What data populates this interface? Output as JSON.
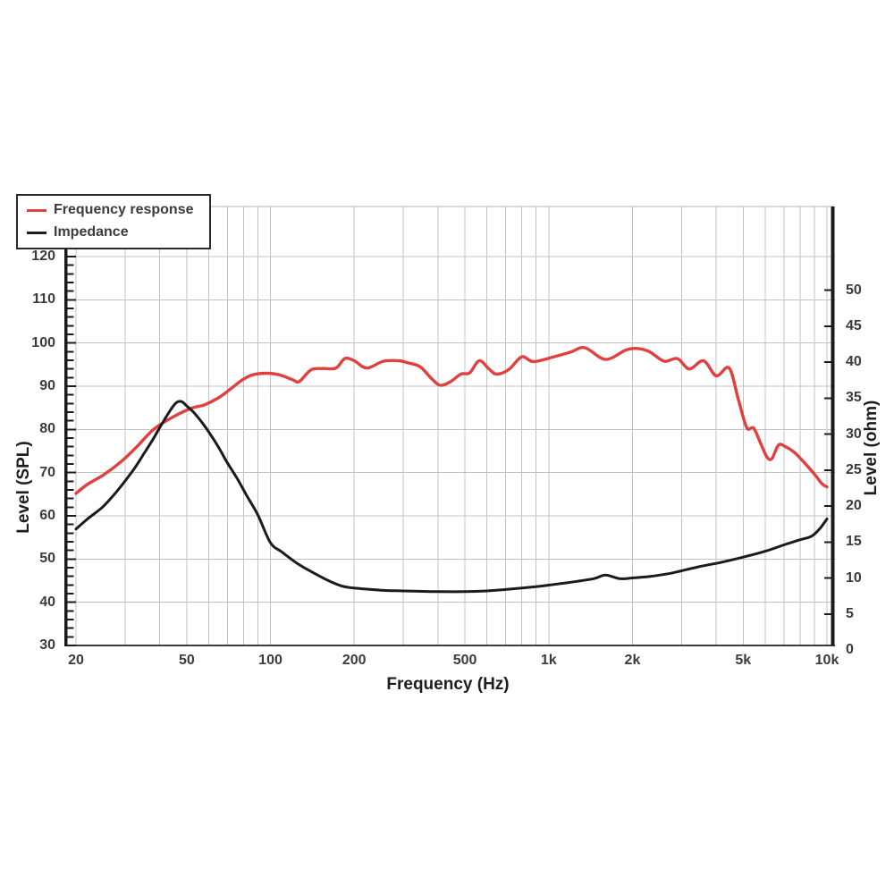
{
  "chart_data": {
    "type": "line",
    "title": "",
    "grid": true,
    "legend_position": "top-left",
    "x_axis": {
      "label": "Frequency (Hz)",
      "scale": "log",
      "min": 20,
      "max": 10000,
      "tick_labels": [
        "20",
        "50",
        "100",
        "200",
        "500",
        "1k",
        "2k",
        "5k",
        "10k"
      ],
      "tick_values": [
        20,
        50,
        100,
        200,
        500,
        1000,
        2000,
        5000,
        10000
      ]
    },
    "y_axis_left": {
      "label": "Level (SPL)",
      "min": 30,
      "max": 120,
      "tick_step": 10,
      "tick_labels": [
        "120",
        "110",
        "100",
        "90",
        "80",
        "70",
        "60",
        "50",
        "40",
        "30"
      ],
      "tick_values": [
        120,
        110,
        100,
        90,
        80,
        70,
        60,
        50,
        40,
        30
      ]
    },
    "y_axis_right": {
      "label": "Level (ohm)",
      "min": 0,
      "max": 50,
      "tick_step": 5,
      "tick_labels": [
        "50",
        "45",
        "40",
        "35",
        "30",
        "25",
        "20",
        "15",
        "10",
        "5",
        "0"
      ],
      "tick_values": [
        50,
        45,
        40,
        35,
        30,
        25,
        20,
        15,
        10,
        5,
        0
      ]
    },
    "series": [
      {
        "name": "Frequency response",
        "axis": "left",
        "unit": "dB SPL",
        "color": "#e0413e",
        "points": [
          [
            20,
            65.2
          ],
          [
            22,
            67.3
          ],
          [
            25,
            69.4
          ],
          [
            29,
            72.5
          ],
          [
            33,
            75.9
          ],
          [
            38,
            80.0
          ],
          [
            45,
            83.0
          ],
          [
            52,
            84.9
          ],
          [
            58,
            85.7
          ],
          [
            65,
            87.3
          ],
          [
            72,
            89.4
          ],
          [
            79,
            91.4
          ],
          [
            86,
            92.6
          ],
          [
            97,
            93.0
          ],
          [
            108,
            92.6
          ],
          [
            120,
            91.5
          ],
          [
            127,
            91.1
          ],
          [
            140,
            93.8
          ],
          [
            155,
            94.1
          ],
          [
            172,
            94.2
          ],
          [
            185,
            96.4
          ],
          [
            200,
            95.9
          ],
          [
            222,
            94.2
          ],
          [
            255,
            95.8
          ],
          [
            290,
            95.9
          ],
          [
            312,
            95.4
          ],
          [
            345,
            94.5
          ],
          [
            380,
            91.7
          ],
          [
            408,
            90.2
          ],
          [
            445,
            91.1
          ],
          [
            483,
            92.8
          ],
          [
            520,
            93.1
          ],
          [
            563,
            95.9
          ],
          [
            610,
            94.0
          ],
          [
            650,
            92.8
          ],
          [
            720,
            93.9
          ],
          [
            800,
            96.8
          ],
          [
            880,
            95.7
          ],
          [
            1030,
            96.7
          ],
          [
            1200,
            97.9
          ],
          [
            1350,
            98.9
          ],
          [
            1600,
            96.2
          ],
          [
            1900,
            98.4
          ],
          [
            2100,
            98.7
          ],
          [
            2300,
            98.0
          ],
          [
            2600,
            95.8
          ],
          [
            2900,
            96.4
          ],
          [
            3200,
            94.0
          ],
          [
            3600,
            95.9
          ],
          [
            4000,
            92.4
          ],
          [
            4450,
            94.2
          ],
          [
            4800,
            87.0
          ],
          [
            5150,
            80.4
          ],
          [
            5450,
            80.3
          ],
          [
            5800,
            76.5
          ],
          [
            6100,
            73.5
          ],
          [
            6350,
            73.3
          ],
          [
            6700,
            76.4
          ],
          [
            7100,
            76.0
          ],
          [
            7600,
            74.8
          ],
          [
            8000,
            73.4
          ],
          [
            9000,
            69.7
          ],
          [
            9600,
            67.4
          ],
          [
            10000,
            66.7
          ]
        ]
      },
      {
        "name": "Impedance",
        "axis": "right",
        "unit": "ohm",
        "color": "#1b1b1b",
        "points": [
          [
            20,
            16.8
          ],
          [
            22,
            18.2
          ],
          [
            25,
            19.9
          ],
          [
            28,
            22.0
          ],
          [
            32,
            24.9
          ],
          [
            35,
            27.2
          ],
          [
            38,
            29.4
          ],
          [
            41,
            31.6
          ],
          [
            44,
            33.5
          ],
          [
            46,
            34.4
          ],
          [
            48,
            34.5
          ],
          [
            50,
            33.9
          ],
          [
            53,
            33.0
          ],
          [
            57,
            31.5
          ],
          [
            60,
            30.3
          ],
          [
            65,
            28.2
          ],
          [
            70,
            26.0
          ],
          [
            76,
            23.8
          ],
          [
            82,
            21.5
          ],
          [
            90,
            18.8
          ],
          [
            100,
            14.9
          ],
          [
            110,
            13.6
          ],
          [
            125,
            12.0
          ],
          [
            140,
            10.9
          ],
          [
            160,
            9.7
          ],
          [
            180,
            8.9
          ],
          [
            200,
            8.6
          ],
          [
            250,
            8.3
          ],
          [
            300,
            8.2
          ],
          [
            400,
            8.1
          ],
          [
            500,
            8.1
          ],
          [
            600,
            8.2
          ],
          [
            700,
            8.4
          ],
          [
            800,
            8.6
          ],
          [
            900,
            8.8
          ],
          [
            1000,
            9.0
          ],
          [
            1200,
            9.4
          ],
          [
            1450,
            9.9
          ],
          [
            1600,
            10.4
          ],
          [
            1800,
            9.9
          ],
          [
            2000,
            10.0
          ],
          [
            2300,
            10.2
          ],
          [
            2700,
            10.6
          ],
          [
            3000,
            11.0
          ],
          [
            3500,
            11.6
          ],
          [
            4200,
            12.2
          ],
          [
            5000,
            12.9
          ],
          [
            6100,
            13.8
          ],
          [
            7000,
            14.6
          ],
          [
            8000,
            15.3
          ],
          [
            8800,
            15.8
          ],
          [
            9400,
            16.8
          ],
          [
            10000,
            18.2
          ]
        ]
      }
    ]
  },
  "legend": {
    "items": [
      {
        "label": "Frequency response",
        "color": "#e0413e"
      },
      {
        "label": "Impedance",
        "color": "#1b1b1b"
      }
    ]
  },
  "colors": {
    "frequency_response": "#e0413e",
    "impedance": "#1b1b1b",
    "grid": "#c3c3c3",
    "frame": "#b5b5b5",
    "axis_dark": "#1b1b1b",
    "bottom_axis": "#3c3c3c",
    "tick_text": "#3b3b3b",
    "background": "#ffffff"
  }
}
